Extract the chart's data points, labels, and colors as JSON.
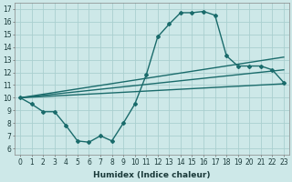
{
  "title": "",
  "xlabel": "Humidex (Indice chaleur)",
  "bg_color": "#cde8e8",
  "grid_color": "#aacfcf",
  "line_color": "#1a6b6b",
  "xlim": [
    -0.5,
    23.5
  ],
  "ylim": [
    5.5,
    17.5
  ],
  "yticks": [
    6,
    7,
    8,
    9,
    10,
    11,
    12,
    13,
    14,
    15,
    16,
    17
  ],
  "xticks": [
    0,
    1,
    2,
    3,
    4,
    5,
    6,
    7,
    8,
    9,
    10,
    11,
    12,
    13,
    14,
    15,
    16,
    17,
    18,
    19,
    20,
    21,
    22,
    23
  ],
  "lines": [
    {
      "x": [
        0,
        1,
        2,
        3,
        4,
        5,
        6,
        7,
        8,
        9,
        10,
        11,
        12,
        13,
        14,
        15,
        16,
        17,
        18,
        19,
        20,
        21,
        22,
        23
      ],
      "y": [
        10.0,
        9.5,
        8.9,
        8.9,
        7.8,
        6.6,
        6.5,
        7.0,
        6.6,
        8.0,
        9.5,
        11.8,
        14.8,
        15.8,
        16.7,
        16.7,
        16.8,
        16.5,
        13.3,
        12.5,
        12.5,
        12.5,
        12.2,
        11.2
      ],
      "marker": "D",
      "markersize": 2.0,
      "linewidth": 1.0,
      "has_marker": true
    },
    {
      "x": [
        0,
        23
      ],
      "y": [
        10.0,
        11.1
      ],
      "marker": null,
      "markersize": 0,
      "linewidth": 1.0,
      "has_marker": false
    },
    {
      "x": [
        0,
        23
      ],
      "y": [
        10.0,
        12.2
      ],
      "marker": null,
      "markersize": 0,
      "linewidth": 1.0,
      "has_marker": false
    },
    {
      "x": [
        0,
        23
      ],
      "y": [
        10.0,
        13.2
      ],
      "marker": null,
      "markersize": 0,
      "linewidth": 1.0,
      "has_marker": false
    }
  ],
  "xlabel_fontsize": 6.5,
  "tick_fontsize": 5.5
}
